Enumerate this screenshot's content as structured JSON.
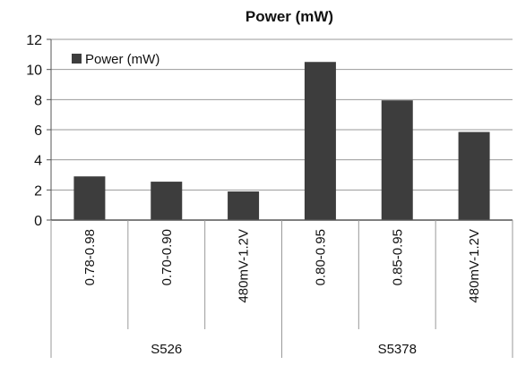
{
  "chart_data": {
    "type": "bar",
    "title": "Power (mW)",
    "categories": [
      "0.78-0.98",
      "0.70-0.90",
      "480mV-1.2V",
      "0.80-0.95",
      "0.85-0.95",
      "480mV-1.2V"
    ],
    "groups": [
      {
        "label": "S526",
        "count": 3
      },
      {
        "label": "S5378",
        "count": 3
      }
    ],
    "series": [
      {
        "name": "Power (mW)",
        "values": [
          2.9,
          2.55,
          1.9,
          10.5,
          7.95,
          5.85
        ],
        "color": "#3d3d3d"
      }
    ],
    "ylim": [
      0,
      12
    ],
    "yticks": [
      0,
      2,
      4,
      6,
      8,
      10,
      12
    ],
    "grid": true,
    "legend": "top-left"
  }
}
